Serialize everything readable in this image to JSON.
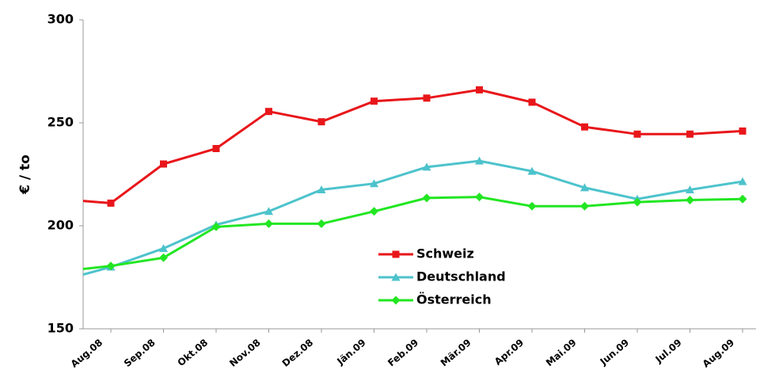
{
  "chart_data": {
    "type": "line",
    "y_label": "€ / to",
    "categories": [
      null,
      "Aug.08",
      "Sep.08",
      "Okt.08",
      "Nov.08",
      "Dez.08",
      "Jän.09",
      "Feb.09",
      "Mär.09",
      "Apr.09",
      "Mai.09",
      "Jun.09",
      "Jul.09",
      "Aug.09"
    ],
    "series": [
      {
        "name": "Schweiz",
        "color": "#e8161a",
        "marker": "square",
        "values": [
          213,
          211,
          230,
          237.5,
          255.5,
          250.5,
          260.5,
          262,
          266,
          260,
          248,
          244.5,
          244.5,
          246
        ]
      },
      {
        "name": "Deutschland",
        "color": "#4dc3cc",
        "marker": "triangle",
        "values": [
          173,
          180,
          189,
          200.5,
          207,
          217.5,
          220.5,
          228.5,
          231.5,
          226.5,
          218.5,
          213,
          217.5,
          221.5
        ]
      },
      {
        "name": "Österreich",
        "color": "#22e622",
        "marker": "diamond",
        "values": [
          177.7,
          180.5,
          184.5,
          199.5,
          201,
          201,
          207,
          213.5,
          214,
          209.5,
          209.5,
          211.5,
          212.5,
          213
        ]
      }
    ],
    "ylim": [
      150,
      300
    ],
    "yticks": [
      150,
      200,
      250,
      300
    ],
    "grid": false,
    "legend": "lower right"
  }
}
